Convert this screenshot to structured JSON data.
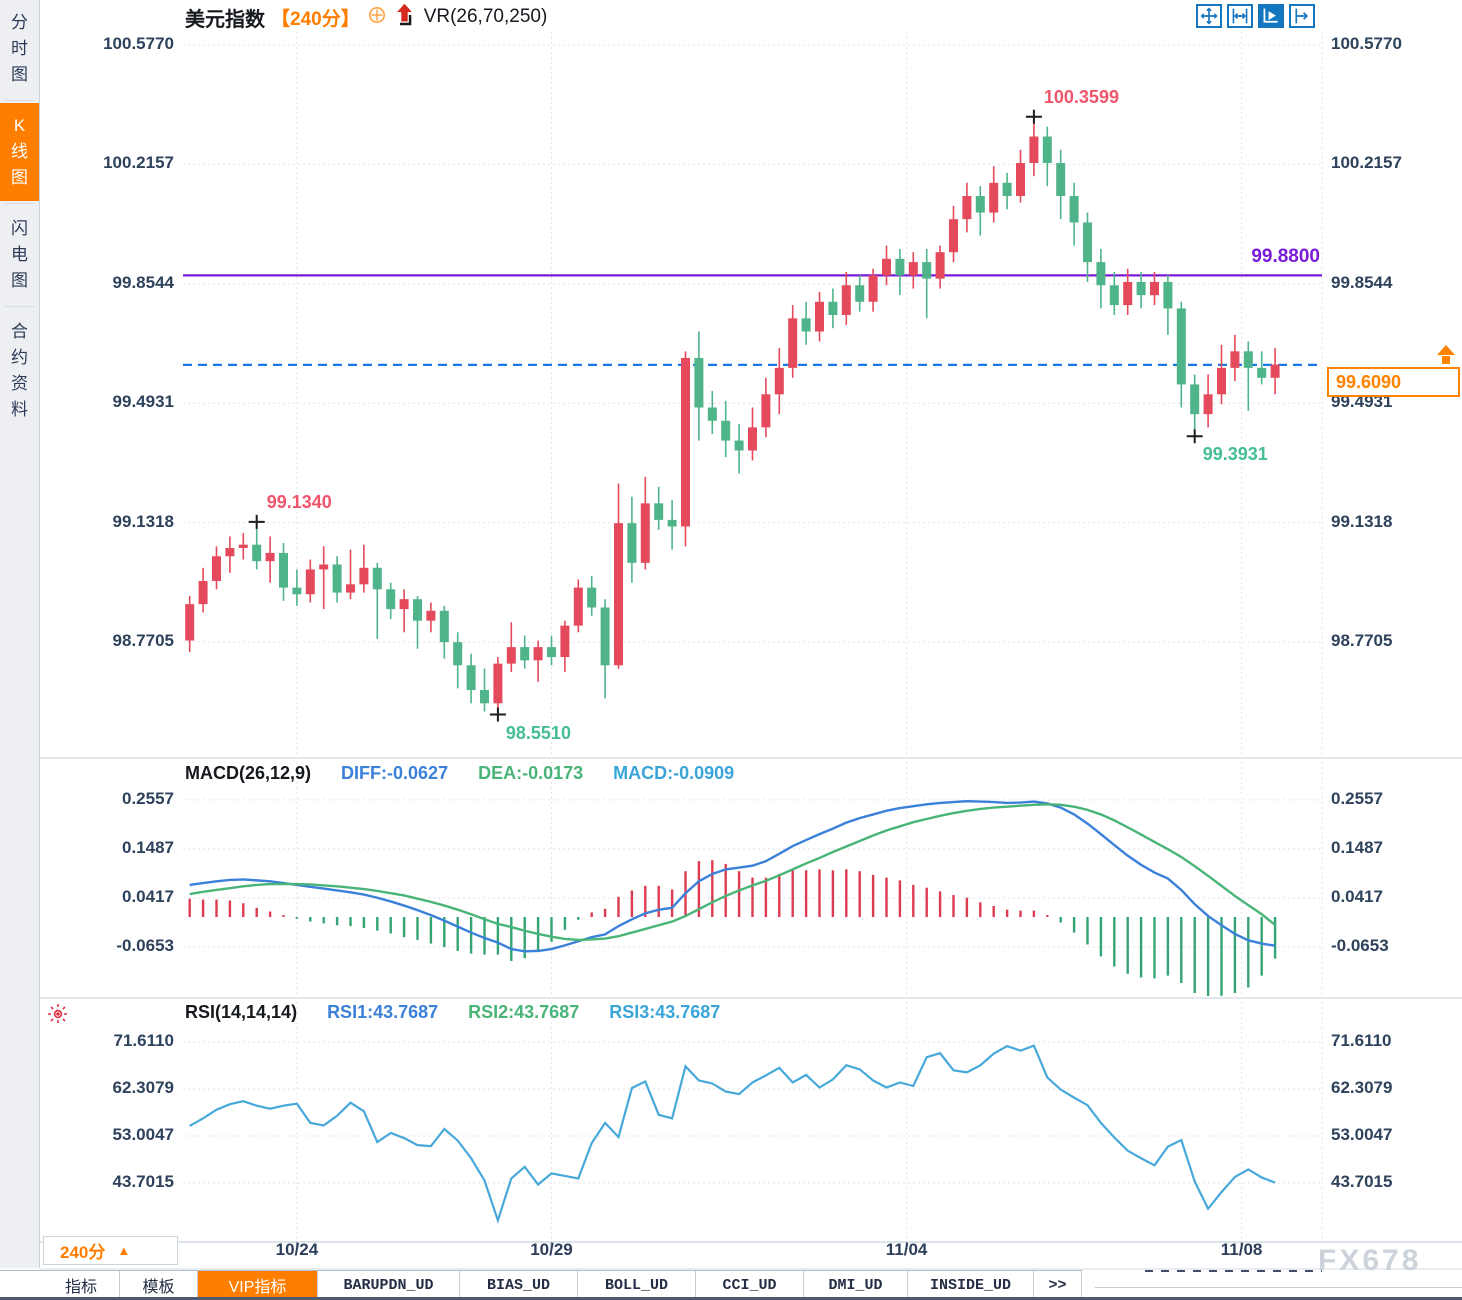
{
  "app": {
    "watermark": "FX678"
  },
  "colors": {
    "up": "#e4495c",
    "down": "#4fb489",
    "accent_orange": "#ff7e00",
    "purple_line": "#7a1bd9",
    "current_line": "#1878e8",
    "macd_bar_up": "#dd3c50",
    "macd_bar_down": "#35a474",
    "diff_line": "#3b80d9",
    "dea_line": "#49b478",
    "macd_value": "#3aa5d9",
    "rsi_line": "#47a8da",
    "icon_blue": "#1576c0",
    "high_label": "#f0566b",
    "low_label": "#45bd95"
  },
  "sidebar": {
    "items": [
      {
        "label": "分时图",
        "active": false
      },
      {
        "label": "K线图",
        "active": true
      },
      {
        "label": "闪电图",
        "active": false
      },
      {
        "label": "合约资料",
        "active": false
      }
    ]
  },
  "header": {
    "symbol": "美元指数",
    "period_tag": "【240分】",
    "indicator": "VR(26,70,250)"
  },
  "toolbar": {
    "icons": [
      {
        "name": "pan-tool-icon",
        "active": false
      },
      {
        "name": "x-axis-scale-icon",
        "active": false
      },
      {
        "name": "auto-scroll-icon",
        "active": true
      },
      {
        "name": "shift-right-icon",
        "active": false
      }
    ]
  },
  "period_selector": {
    "label": "240分"
  },
  "tabs": [
    {
      "label": "指标",
      "active": false,
      "mono": false
    },
    {
      "label": "模板",
      "active": false,
      "mono": false
    },
    {
      "label": "VIP指标",
      "active": true,
      "mono": false
    },
    {
      "label": "BARUPDN_UD",
      "active": false,
      "mono": true
    },
    {
      "label": "BIAS_UD",
      "active": false,
      "mono": true
    },
    {
      "label": "BOLL_UD",
      "active": false,
      "mono": true
    },
    {
      "label": "CCI_UD",
      "active": false,
      "mono": true
    },
    {
      "label": "DMI_UD",
      "active": false,
      "mono": true
    },
    {
      "label": "INSIDE_UD",
      "active": false,
      "mono": true
    },
    {
      "label": ">>",
      "active": false,
      "mono": true
    }
  ],
  "chart_data": [
    {
      "type": "candlestick",
      "name": "美元指数 240分 K线",
      "price_ticks": [
        100.577,
        100.2157,
        99.8544,
        99.4931,
        99.1318,
        98.7705
      ],
      "dates": [
        {
          "label": "10/24",
          "index": 8
        },
        {
          "label": "10/29",
          "index": 27
        },
        {
          "label": "11/04",
          "index": 53.5
        },
        {
          "label": "11/08",
          "index": 78.5
        }
      ],
      "candles": [
        [
          98.775,
          98.91,
          98.74,
          98.885
        ],
        [
          98.885,
          98.995,
          98.86,
          98.955
        ],
        [
          98.955,
          99.06,
          98.93,
          99.03
        ],
        [
          99.03,
          99.09,
          98.98,
          99.055
        ],
        [
          99.055,
          99.1,
          99.02,
          99.065
        ],
        [
          99.065,
          99.134,
          98.99,
          99.015
        ],
        [
          99.015,
          99.09,
          98.95,
          99.04
        ],
        [
          99.04,
          99.07,
          98.895,
          98.935
        ],
        [
          98.935,
          98.99,
          98.88,
          98.915
        ],
        [
          98.915,
          99.02,
          98.89,
          98.99
        ],
        [
          98.99,
          99.06,
          98.87,
          99.005
        ],
        [
          99.005,
          99.03,
          98.89,
          98.92
        ],
        [
          98.92,
          99.05,
          98.9,
          98.945
        ],
        [
          98.945,
          99.065,
          98.92,
          98.995
        ],
        [
          98.995,
          99.01,
          98.78,
          98.93
        ],
        [
          98.93,
          98.95,
          98.84,
          98.87
        ],
        [
          98.87,
          98.93,
          98.8,
          98.9
        ],
        [
          98.9,
          98.91,
          98.75,
          98.835
        ],
        [
          98.835,
          98.89,
          98.8,
          98.865
        ],
        [
          98.865,
          98.88,
          98.72,
          98.77
        ],
        [
          98.77,
          98.8,
          98.63,
          98.7
        ],
        [
          98.7,
          98.735,
          98.585,
          98.625
        ],
        [
          98.625,
          98.69,
          98.56,
          98.585
        ],
        [
          98.585,
          98.725,
          98.551,
          98.705
        ],
        [
          98.705,
          98.83,
          98.68,
          98.755
        ],
        [
          98.755,
          98.79,
          98.69,
          98.715
        ],
        [
          98.715,
          98.775,
          98.65,
          98.755
        ],
        [
          98.755,
          98.79,
          98.7,
          98.725
        ],
        [
          98.725,
          98.835,
          98.68,
          98.82
        ],
        [
          98.82,
          98.96,
          98.8,
          98.935
        ],
        [
          98.935,
          98.97,
          98.85,
          98.875
        ],
        [
          98.875,
          98.9,
          98.6,
          98.7
        ],
        [
          98.7,
          99.25,
          98.69,
          99.13
        ],
        [
          99.13,
          99.21,
          98.95,
          99.01
        ],
        [
          99.01,
          99.27,
          98.99,
          99.19
        ],
        [
          99.19,
          99.24,
          99.11,
          99.14
        ],
        [
          99.14,
          99.2,
          99.05,
          99.12
        ],
        [
          99.12,
          99.65,
          99.06,
          99.63
        ],
        [
          99.63,
          99.71,
          99.38,
          99.48
        ],
        [
          99.48,
          99.53,
          99.4,
          99.44
        ],
        [
          99.44,
          99.5,
          99.33,
          99.38
        ],
        [
          99.38,
          99.43,
          99.28,
          99.35
        ],
        [
          99.35,
          99.48,
          99.32,
          99.42
        ],
        [
          99.42,
          99.57,
          99.39,
          99.52
        ],
        [
          99.52,
          99.66,
          99.46,
          99.6
        ],
        [
          99.6,
          99.79,
          99.57,
          99.75
        ],
        [
          99.75,
          99.8,
          99.67,
          99.71
        ],
        [
          99.71,
          99.83,
          99.68,
          99.8
        ],
        [
          99.8,
          99.84,
          99.72,
          99.76
        ],
        [
          99.76,
          99.89,
          99.73,
          99.85
        ],
        [
          99.85,
          99.88,
          99.77,
          99.8
        ],
        [
          99.8,
          99.9,
          99.77,
          99.88
        ],
        [
          99.88,
          99.97,
          99.85,
          99.93
        ],
        [
          99.93,
          99.96,
          99.82,
          99.88
        ],
        [
          99.88,
          99.95,
          99.84,
          99.92
        ],
        [
          99.92,
          99.96,
          99.75,
          99.87
        ],
        [
          99.87,
          99.97,
          99.84,
          99.95
        ],
        [
          99.95,
          100.09,
          99.92,
          100.05
        ],
        [
          100.05,
          100.16,
          100.01,
          100.12
        ],
        [
          100.12,
          100.15,
          100.0,
          100.07
        ],
        [
          100.07,
          100.21,
          100.04,
          100.16
        ],
        [
          100.16,
          100.19,
          100.08,
          100.12
        ],
        [
          100.12,
          100.26,
          100.1,
          100.22
        ],
        [
          100.22,
          100.3599,
          100.18,
          100.3
        ],
        [
          100.3,
          100.33,
          100.15,
          100.22
        ],
        [
          100.22,
          100.26,
          100.05,
          100.12
        ],
        [
          100.12,
          100.16,
          99.97,
          100.04
        ],
        [
          100.04,
          100.07,
          99.86,
          99.92
        ],
        [
          99.92,
          99.96,
          99.78,
          99.85
        ],
        [
          99.85,
          99.89,
          99.76,
          99.79
        ],
        [
          99.79,
          99.9,
          99.76,
          99.86
        ],
        [
          99.86,
          99.89,
          99.78,
          99.82
        ],
        [
          99.82,
          99.89,
          99.79,
          99.86
        ],
        [
          99.86,
          99.88,
          99.7,
          99.78
        ],
        [
          99.78,
          99.8,
          99.48,
          99.55
        ],
        [
          99.55,
          99.58,
          99.3931,
          99.46
        ],
        [
          99.46,
          99.58,
          99.42,
          99.52
        ],
        [
          99.52,
          99.67,
          99.49,
          99.6
        ],
        [
          99.6,
          99.7,
          99.56,
          99.65
        ],
        [
          99.65,
          99.68,
          99.47,
          99.6
        ],
        [
          99.6,
          99.65,
          99.55,
          99.57
        ],
        [
          99.57,
          99.66,
          99.52,
          99.61
        ]
      ],
      "annotations": [
        {
          "kind": "high",
          "index": 5,
          "price": 99.134,
          "label": "99.1340"
        },
        {
          "kind": "low",
          "index": 23,
          "price": 98.551,
          "label": "98.5510"
        },
        {
          "kind": "high",
          "index": 63,
          "price": 100.3599,
          "label": "100.3599"
        },
        {
          "kind": "low",
          "index": 75,
          "price": 99.3931,
          "label": "99.3931"
        }
      ],
      "hline": {
        "price": 99.88,
        "label": "99.8800"
      },
      "current": {
        "price": 99.609,
        "label": "99.6090"
      }
    },
    {
      "type": "macd",
      "header": {
        "title": "MACD(26,12,9)",
        "diff": "DIFF:-0.0627",
        "dea": "DEA:-0.0173",
        "macd": "MACD:-0.0909"
      },
      "ticks": [
        0.2557,
        0.1487,
        0.0417,
        -0.0653
      ],
      "diff": [
        0.07,
        0.074,
        0.078,
        0.081,
        0.082,
        0.08,
        0.078,
        0.074,
        0.07,
        0.066,
        0.062,
        0.058,
        0.054,
        0.049,
        0.042,
        0.034,
        0.025,
        0.015,
        0.004,
        -0.008,
        -0.021,
        -0.034,
        -0.046,
        -0.056,
        -0.07,
        -0.075,
        -0.074,
        -0.07,
        -0.062,
        -0.053,
        -0.044,
        -0.038,
        -0.02,
        -0.005,
        0.008,
        0.016,
        0.02,
        0.052,
        0.078,
        0.094,
        0.104,
        0.108,
        0.112,
        0.122,
        0.138,
        0.155,
        0.168,
        0.181,
        0.193,
        0.206,
        0.216,
        0.224,
        0.232,
        0.238,
        0.242,
        0.246,
        0.249,
        0.251,
        0.253,
        0.252,
        0.251,
        0.249,
        0.25,
        0.252,
        0.248,
        0.239,
        0.224,
        0.204,
        0.181,
        0.157,
        0.134,
        0.114,
        0.097,
        0.084,
        0.059,
        0.028,
        0.002,
        -0.018,
        -0.037,
        -0.051,
        -0.058,
        -0.0627
      ],
      "dea": [
        0.05,
        0.055,
        0.059,
        0.063,
        0.067,
        0.07,
        0.072,
        0.072,
        0.072,
        0.071,
        0.069,
        0.067,
        0.064,
        0.061,
        0.057,
        0.052,
        0.047,
        0.04,
        0.033,
        0.025,
        0.016,
        0.006,
        -0.005,
        -0.015,
        -0.022,
        -0.03,
        -0.037,
        -0.043,
        -0.048,
        -0.05,
        -0.049,
        -0.047,
        -0.042,
        -0.034,
        -0.026,
        -0.018,
        -0.01,
        0.002,
        0.017,
        0.032,
        0.046,
        0.058,
        0.069,
        0.079,
        0.091,
        0.104,
        0.117,
        0.129,
        0.142,
        0.154,
        0.166,
        0.178,
        0.189,
        0.198,
        0.207,
        0.214,
        0.221,
        0.227,
        0.232,
        0.236,
        0.239,
        0.241,
        0.243,
        0.245,
        0.246,
        0.245,
        0.241,
        0.234,
        0.224,
        0.211,
        0.196,
        0.18,
        0.164,
        0.148,
        0.131,
        0.111,
        0.09,
        0.068,
        0.046,
        0.026,
        0.006,
        -0.0173
      ]
    },
    {
      "type": "line",
      "header": {
        "title": "RSI(14,14,14)",
        "rsi1": "RSI1:43.7687",
        "rsi2": "RSI2:43.7687",
        "rsi3": "RSI3:43.7687"
      },
      "ticks": [
        71.611,
        62.3079,
        53.0047,
        43.7015
      ],
      "rsi": [
        55.0,
        56.5,
        58.2,
        59.3,
        59.9,
        59.0,
        58.4,
        59.0,
        59.4,
        55.6,
        55.1,
        57.0,
        59.6,
        57.9,
        51.8,
        53.6,
        52.6,
        51.2,
        51.0,
        54.4,
        52.1,
        48.6,
        44.2,
        36.3,
        44.6,
        46.9,
        43.4,
        45.6,
        45.1,
        44.6,
        51.6,
        55.6,
        52.8,
        62.5,
        63.8,
        57.2,
        56.5,
        66.8,
        64.0,
        63.4,
        61.8,
        61.3,
        63.6,
        65.0,
        66.5,
        63.6,
        65.1,
        62.6,
        64.2,
        67.0,
        66.2,
        64.0,
        62.6,
        63.6,
        62.9,
        68.6,
        69.4,
        66.0,
        65.6,
        67.0,
        69.3,
        70.8,
        69.9,
        70.9,
        64.6,
        62.2,
        60.6,
        59.1,
        55.6,
        52.7,
        50.1,
        48.6,
        47.2,
        50.9,
        52.2,
        44.0,
        38.6,
        41.9,
        44.9,
        46.4,
        44.8,
        43.7687
      ]
    }
  ]
}
